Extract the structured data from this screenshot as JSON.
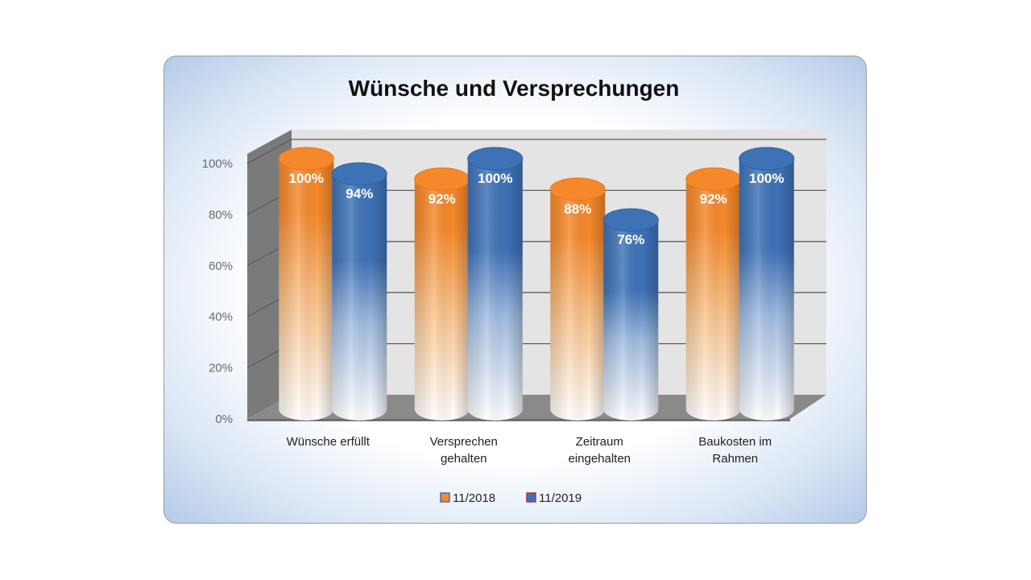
{
  "colors": {
    "series1": "#f5882a",
    "series2": "#3e72b7",
    "wall": "#e4e4e4",
    "side": "#7a7a7a",
    "floor": "#8a8a8a"
  },
  "chart_data": {
    "type": "bar",
    "title": "Wünsche und Versprechungen",
    "categories": [
      [
        "Wünsche erfüllt"
      ],
      [
        "Versprechen",
        "gehalten"
      ],
      [
        "Zeitraum",
        "eingehalten"
      ],
      [
        "Baukosten im",
        "Rahmen"
      ]
    ],
    "series": [
      {
        "name": "11/2018",
        "values": [
          100,
          92,
          88,
          92
        ],
        "labels": [
          "100%",
          "92%",
          "88%",
          "92%"
        ]
      },
      {
        "name": "11/2019",
        "values": [
          94,
          100,
          76,
          100
        ],
        "labels": [
          "94%",
          "100%",
          "76%",
          "100%"
        ]
      }
    ],
    "y_ticks": [
      "0%",
      "20%",
      "40%",
      "60%",
      "80%",
      "100%"
    ],
    "ylim": [
      0,
      100
    ],
    "grid": true,
    "legend_position": "bottom"
  }
}
